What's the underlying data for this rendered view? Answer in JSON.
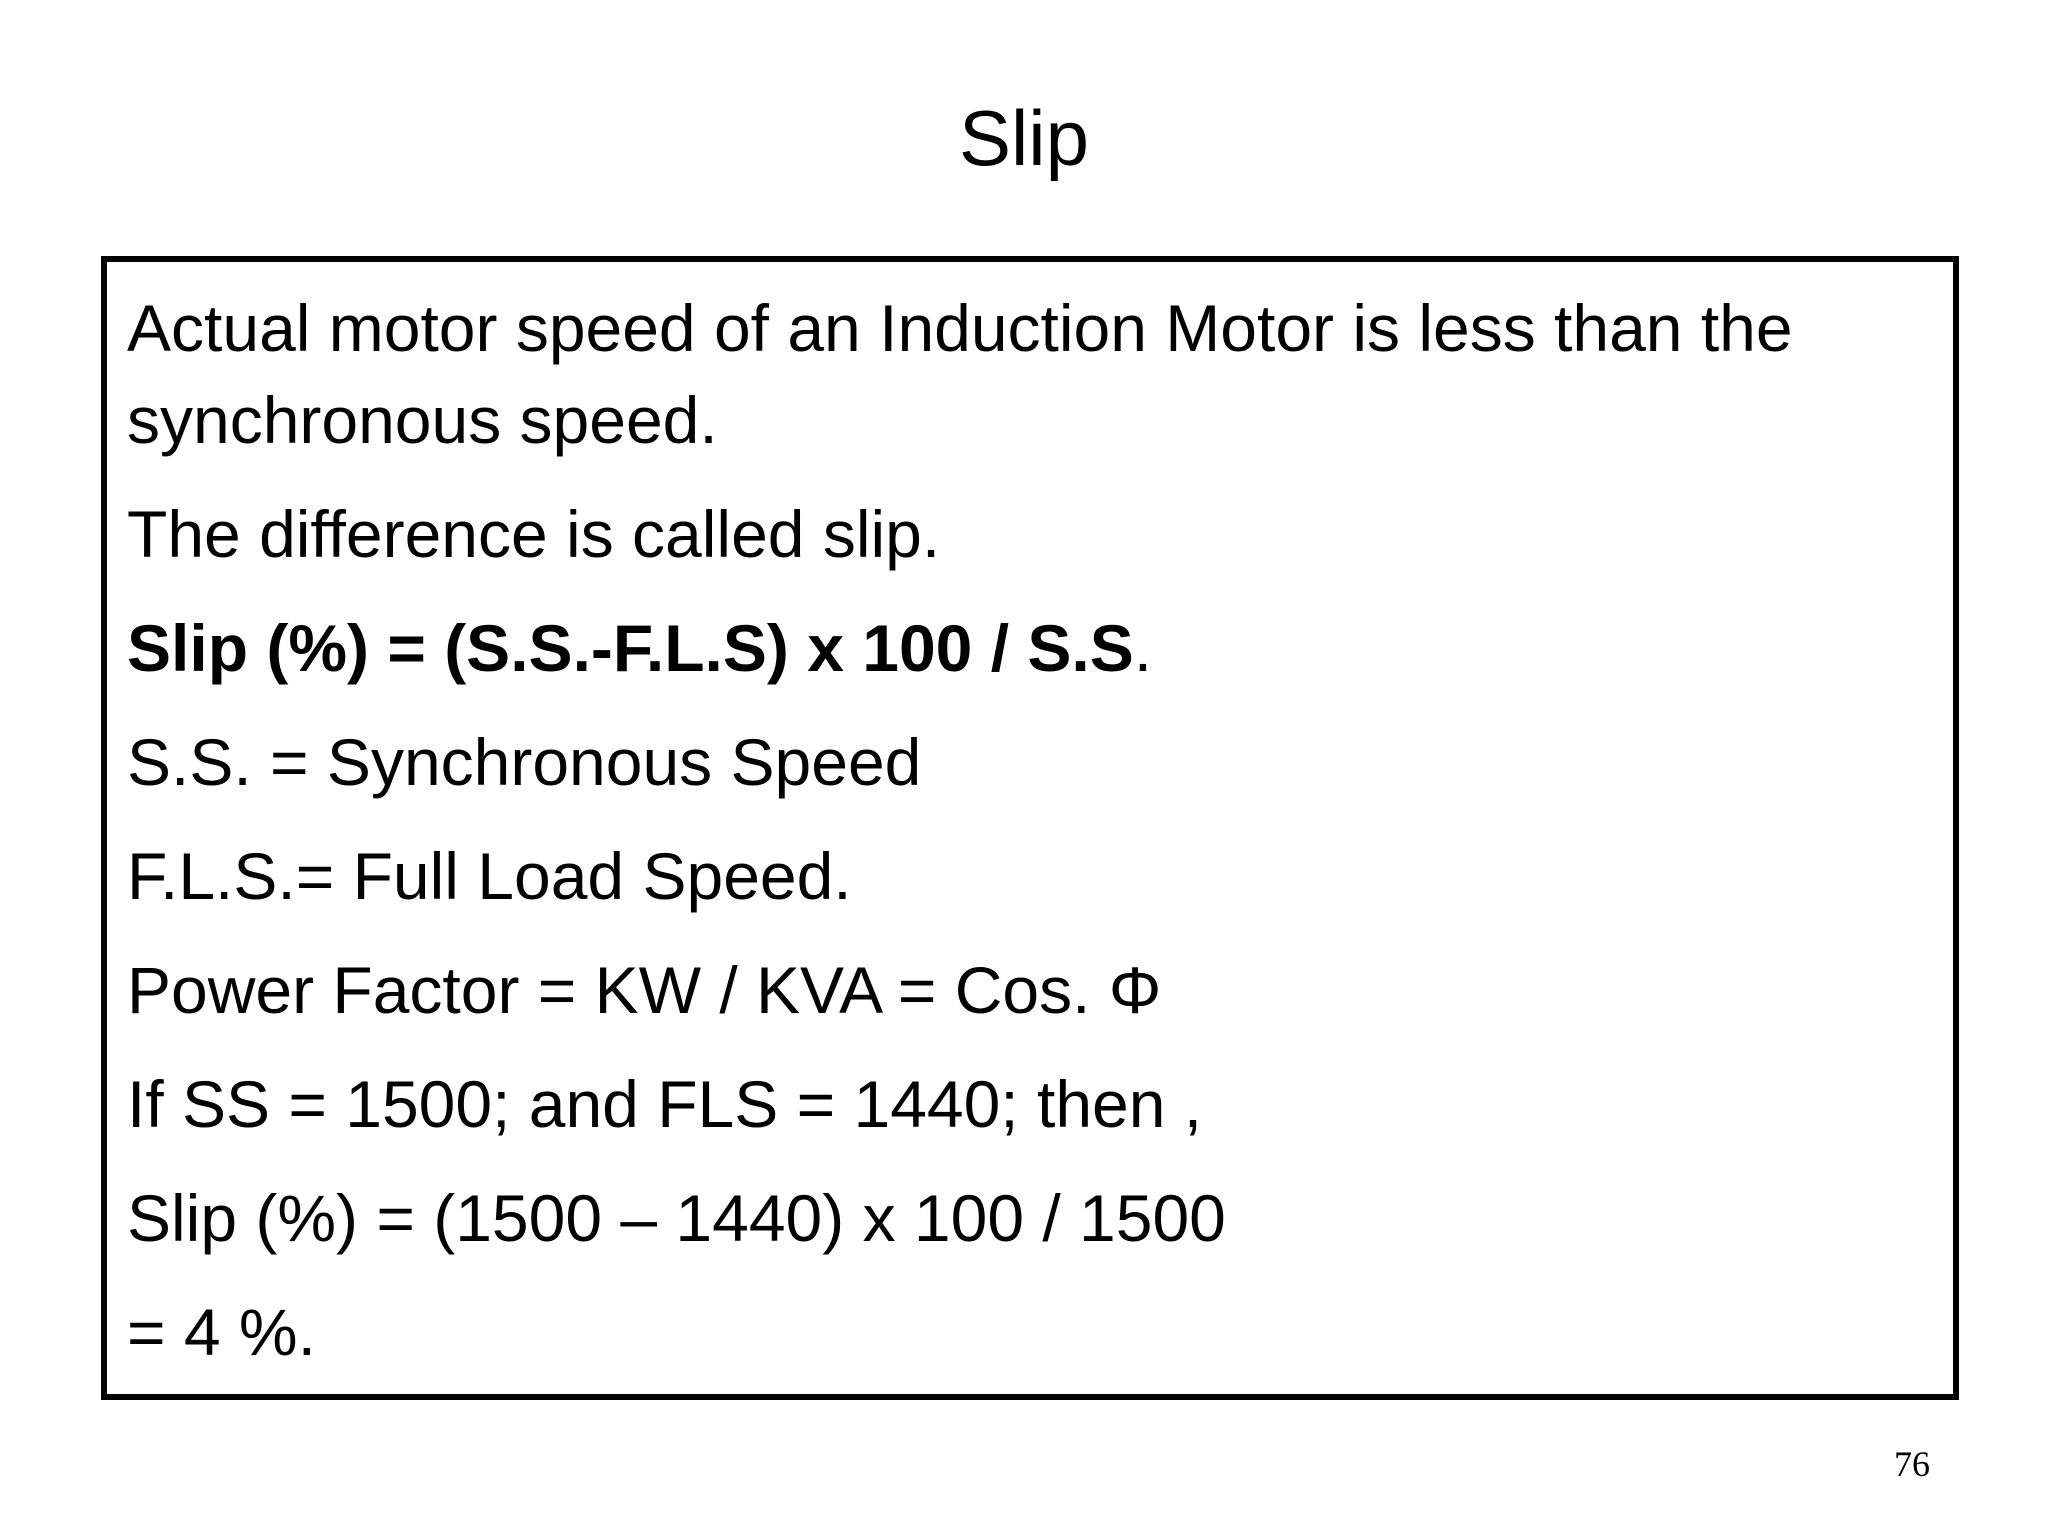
{
  "slide": {
    "title": "Slip",
    "page_number": "76"
  },
  "content": {
    "line_1": "Actual motor speed of an Induction Motor is less than the synchronous speed.",
    "line_2": "The difference is called slip.",
    "line_3_bold": "Slip (%) = (S.S.-F.L.S) x 100 / S.S",
    "line_3_tail": ".",
    "line_4": "S.S. = Synchronous Speed",
    "line_5": "F.L.S.= Full Load Speed.",
    "line_6": "Power Factor = KW / KVA = Cos. Φ",
    "line_7": "If SS = 1500; and FLS = 1440; then ,",
    "line_8": "Slip (%) = (1500 – 1440) x 100 / 1500",
    "line_9": "= 4 %."
  }
}
